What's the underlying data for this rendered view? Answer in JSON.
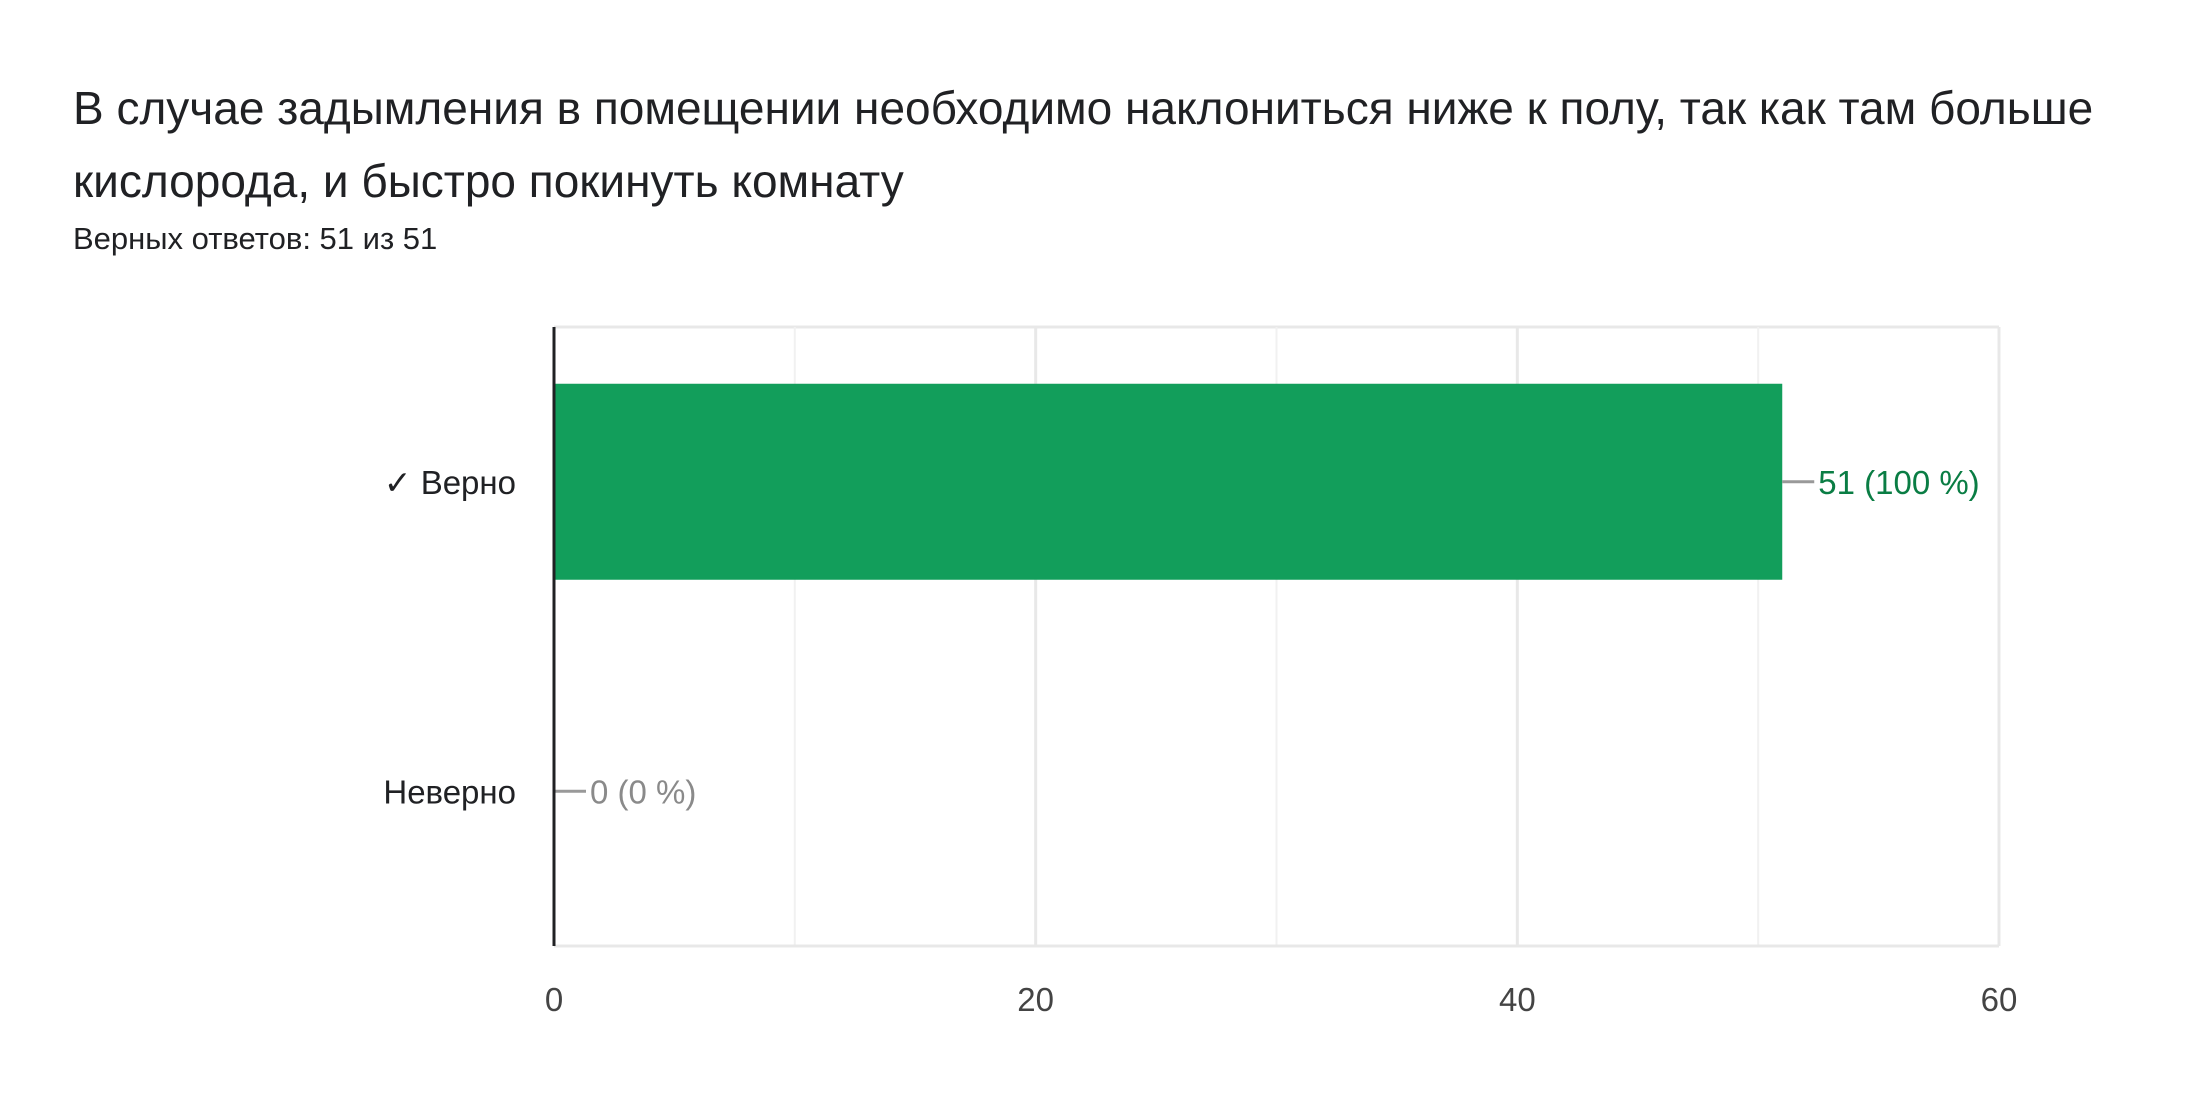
{
  "question": {
    "title": "В случае задымления в помещении необходимо наклониться ниже к полу, так как там больше кислорода, и быстро покинуть комнату",
    "score": "Верных ответов: 51 из 51"
  },
  "colors": {
    "correct": "#129e5b",
    "correct_label": "#0a7d44",
    "zero_label": "#8a8a8a",
    "gridline": "#e8e8e8",
    "axis": "#202124",
    "leader": "#999999"
  },
  "chart_data": {
    "type": "bar",
    "orientation": "horizontal",
    "categories": [
      "✓ Верно",
      "Неверно"
    ],
    "values": [
      51,
      0
    ],
    "data_labels": [
      "51 (100 %)",
      "0 (0 %)"
    ],
    "xlim": [
      0,
      60
    ],
    "xticks": [
      0,
      20,
      40,
      60
    ],
    "xtick_labels": [
      "0",
      "20",
      "40",
      "60"
    ],
    "minor_gridlines": [
      10,
      30,
      50
    ],
    "grid": true,
    "legend": "none"
  }
}
